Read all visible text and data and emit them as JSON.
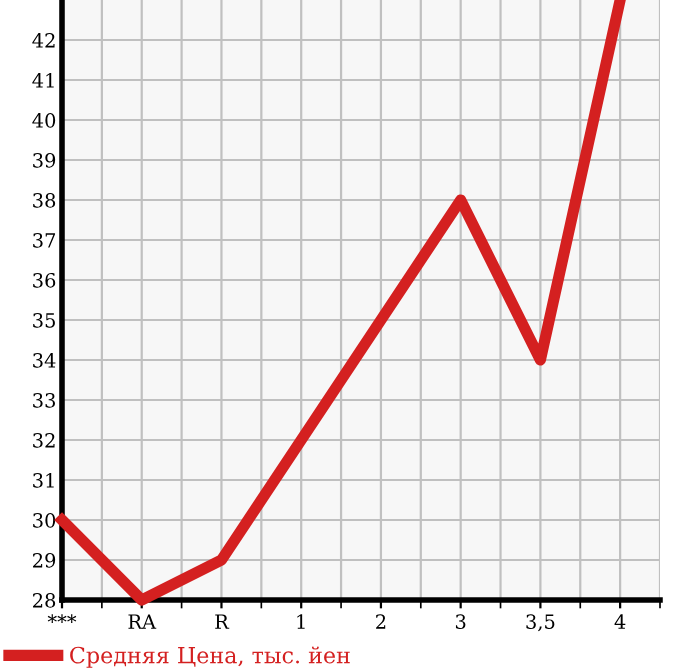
{
  "chart_data": {
    "type": "line",
    "categories": [
      "***",
      "RA",
      "R",
      "1",
      "2",
      "3",
      "3,5",
      "4"
    ],
    "series": [
      {
        "name": "Средняя Цена, тыс. йен",
        "color": "#d42020",
        "values": [
          30,
          28,
          29,
          32,
          35,
          38,
          34,
          43
        ]
      }
    ],
    "ylim": [
      28,
      43
    ],
    "yticks": [
      28,
      29,
      30,
      31,
      32,
      33,
      34,
      35,
      36,
      37,
      38,
      39,
      40,
      41,
      42
    ],
    "grid": true,
    "legend": "bottom left",
    "marker": "none",
    "line_style": "solid"
  }
}
